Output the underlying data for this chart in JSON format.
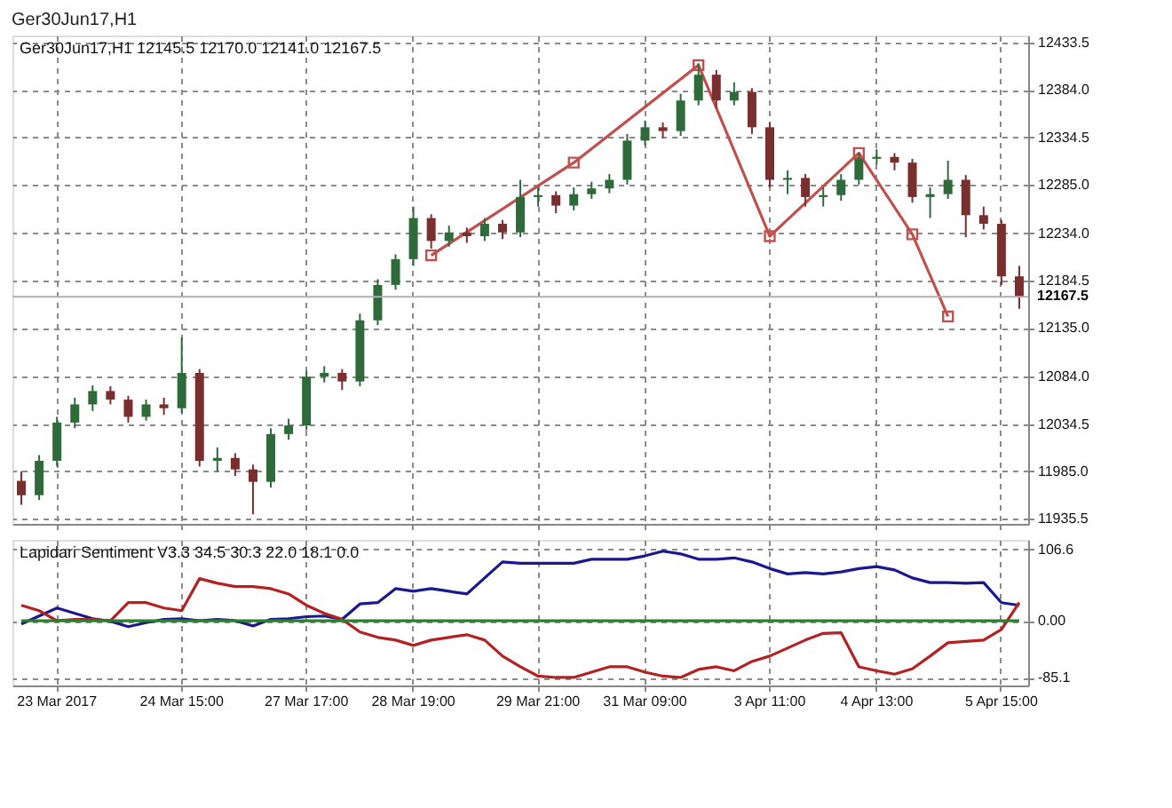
{
  "chart_data": [
    {
      "type": "candlestick",
      "title": "Ger30Jun17,H1",
      "annotations": [
        "Ger30Jun17,H1  12145.5 12170.0 12141.0 12167.5"
      ],
      "categories": [
        null,
        null,
        null,
        null,
        null,
        null,
        null,
        null,
        null,
        null,
        null,
        null,
        null,
        null,
        null,
        null,
        null,
        null,
        null,
        null,
        null,
        null,
        null,
        null,
        null,
        null,
        null,
        null,
        null,
        null,
        null,
        null,
        null,
        null,
        null,
        null,
        null,
        null,
        null,
        null,
        null,
        null,
        null,
        null,
        null,
        null,
        null,
        null,
        null,
        null,
        null,
        null,
        null,
        null,
        null,
        null,
        null
      ],
      "ohlc": [
        [
          11975,
          11985,
          11950,
          11960
        ],
        [
          11960,
          12002,
          11955,
          11996
        ],
        [
          11996,
          12042,
          11990,
          12036
        ],
        [
          12036,
          12062,
          12030,
          12055
        ],
        [
          12055,
          12075,
          12048,
          12069
        ],
        [
          12069,
          12074,
          12055,
          12060
        ],
        [
          12060,
          12064,
          12036,
          12042
        ],
        [
          12042,
          12060,
          12038,
          12055
        ],
        [
          12055,
          12062,
          12044,
          12051
        ],
        [
          12051,
          12125,
          12046,
          12088
        ],
        [
          12088,
          12092,
          11990,
          11996
        ],
        [
          11996,
          12010,
          11985,
          11999
        ],
        [
          11999,
          12004,
          11980,
          11987
        ],
        [
          11987,
          11992,
          11940,
          11974
        ],
        [
          11974,
          12030,
          11968,
          12024
        ],
        [
          12024,
          12040,
          12018,
          12033
        ],
        [
          12033,
          12090,
          12028,
          12084
        ],
        [
          12084,
          12095,
          12078,
          12088
        ],
        [
          12088,
          12092,
          12070,
          12079
        ],
        [
          12079,
          12150,
          12074,
          12143
        ],
        [
          12143,
          12186,
          12138,
          12180
        ],
        [
          12180,
          12212,
          12175,
          12207
        ],
        [
          12207,
          12262,
          12200,
          12250
        ],
        [
          12250,
          12254,
          12218,
          12226
        ],
        [
          12226,
          12242,
          12220,
          12235
        ],
        [
          12235,
          12240,
          12224,
          12231
        ],
        [
          12231,
          12250,
          12226,
          12244
        ],
        [
          12244,
          12248,
          12228,
          12235
        ],
        [
          12235,
          12290,
          12230,
          12272
        ],
        [
          12272,
          12282,
          12262,
          12274
        ],
        [
          12274,
          12278,
          12255,
          12263
        ],
        [
          12263,
          12282,
          12258,
          12275
        ],
        [
          12275,
          12288,
          12270,
          12281
        ],
        [
          12281,
          12296,
          12276,
          12290
        ],
        [
          12290,
          12338,
          12285,
          12331
        ],
        [
          12331,
          12352,
          12326,
          12345
        ],
        [
          12345,
          12350,
          12334,
          12341
        ],
        [
          12341,
          12380,
          12336,
          12373
        ],
        [
          12373,
          12412,
          12368,
          12400
        ],
        [
          12400,
          12405,
          12365,
          12373
        ],
        [
          12373,
          12392,
          12368,
          12382
        ],
        [
          12382,
          12386,
          12338,
          12345
        ],
        [
          12345,
          12350,
          12282,
          12290
        ],
        [
          12290,
          12300,
          12275,
          12292
        ],
        [
          12292,
          12296,
          12262,
          12272
        ],
        [
          12272,
          12282,
          12262,
          12274
        ],
        [
          12274,
          12296,
          12268,
          12290
        ],
        [
          12290,
          12318,
          12285,
          12312
        ],
        [
          12312,
          12322,
          12306,
          12314
        ],
        [
          12314,
          12318,
          12300,
          12308
        ],
        [
          12308,
          12312,
          12266,
          12272
        ],
        [
          12272,
          12282,
          12250,
          12275
        ],
        [
          12275,
          12310,
          12270,
          12290
        ],
        [
          12290,
          12295,
          12230,
          12253
        ],
        [
          12253,
          12262,
          12238,
          12244
        ],
        [
          12244,
          12248,
          12180,
          12189
        ],
        [
          12189,
          12200,
          12155,
          12167.5
        ]
      ],
      "colors": [
        "#7a2e2e",
        "#2f6b3a",
        "#2f6b3a",
        "#2f6b3a",
        "#2f6b3a",
        "#7a2e2e",
        "#7a2e2e",
        "#2f6b3a",
        "#7a2e2e",
        "#2f6b3a",
        "#7a2e2e",
        "#2f6b3a",
        "#7a2e2e",
        "#7a2e2e",
        "#2f6b3a",
        "#2f6b3a",
        "#2f6b3a",
        "#2f6b3a",
        "#7a2e2e",
        "#2f6b3a",
        "#2f6b3a",
        "#2f6b3a",
        "#2f6b3a",
        "#7a2e2e",
        "#2f6b3a",
        "#7a2e2e",
        "#2f6b3a",
        "#7a2e2e",
        "#2f6b3a",
        "#2f6b3a",
        "#7a2e2e",
        "#2f6b3a",
        "#2f6b3a",
        "#2f6b3a",
        "#2f6b3a",
        "#2f6b3a",
        "#7a2e2e",
        "#2f6b3a",
        "#2f6b3a",
        "#7a2e2e",
        "#2f6b3a",
        "#7a2e2e",
        "#7a2e2e",
        "#2f6b3a",
        "#7a2e2e",
        "#2f6b3a",
        "#2f6b3a",
        "#2f6b3a",
        "#2f6b3a",
        "#7a2e2e",
        "#7a2e2e",
        "#2f6b3a",
        "#2f6b3a",
        "#7a2e2e",
        "#7a2e2e",
        "#7a2e2e",
        "#7a2e2e"
      ],
      "series": [
        {
          "type": "line",
          "color": "#c0504d",
          "values": [
            null,
            null,
            null,
            null,
            null,
            null,
            null,
            null,
            null,
            null,
            null,
            null,
            null,
            null,
            null,
            null,
            null,
            null,
            null,
            null,
            null,
            null,
            null,
            12211,
            null,
            null,
            null,
            null,
            null,
            null,
            null,
            12308,
            null,
            null,
            null,
            null,
            null,
            null,
            12410,
            null,
            null,
            null,
            12231,
            null,
            null,
            null,
            null,
            12318,
            null,
            null,
            12233,
            null,
            12147,
            null,
            null,
            null,
            null
          ]
        }
      ],
      "marker": "square",
      "ylim": [
        11930,
        12441
      ],
      "yticks": [
        12433.5,
        {
          "value": 12384,
          "label": "12384.0"
        },
        12334.5,
        {
          "value": 12285,
          "label": "12285.0"
        },
        {
          "value": 12234,
          "label": "12234.0"
        },
        12184.5,
        {
          "value": 12135,
          "label": "12135.0"
        },
        {
          "value": 12084,
          "label": "12084.0"
        },
        12034.5,
        {
          "value": 11985,
          "label": "11985.0"
        },
        11935.5
      ],
      "ref_lines": [
        {
          "axis": "y",
          "value": 12167.5,
          "label": "12167.5",
          "color": "#b0b0b0"
        }
      ],
      "tick_labels": "y",
      "grid": true
    },
    {
      "type": "line",
      "annotations": [
        "Lapidari Sentiment V3.3 34.5 30.3 22.0 18.1 0.0"
      ],
      "categories": [
        null,
        null,
        "23 Mar 2017",
        null,
        null,
        null,
        null,
        null,
        null,
        "24 Mar 15:00",
        null,
        null,
        null,
        null,
        null,
        null,
        "27 Mar 17:00",
        null,
        null,
        null,
        null,
        null,
        "28 Mar 19:00",
        null,
        null,
        null,
        null,
        null,
        null,
        "29 Mar 21:00",
        null,
        null,
        null,
        null,
        null,
        "31 Mar 09:00",
        null,
        null,
        null,
        null,
        null,
        null,
        "3 Apr 11:00",
        null,
        null,
        null,
        null,
        null,
        "4 Apr 13:00",
        null,
        null,
        null,
        null,
        null,
        null,
        "5 Apr 15:00",
        null
      ],
      "series": [
        {
          "color": "#1a1a8c",
          "values": [
            -5,
            7,
            19,
            11,
            3,
            -1,
            -9,
            -3,
            2,
            3,
            0,
            2,
            0,
            -8,
            2,
            3,
            6,
            7,
            2,
            25,
            27,
            48,
            44,
            48,
            44,
            40,
            64,
            88,
            86,
            86,
            86,
            86,
            92,
            92,
            92,
            97,
            104,
            100,
            92,
            92,
            94,
            88,
            78,
            70,
            72,
            70,
            73,
            78,
            81,
            76,
            64,
            57,
            57,
            56,
            57,
            27,
            23
          ]
        },
        {
          "color": "#b22222",
          "values": [
            23,
            15,
            0,
            2,
            2,
            0,
            27,
            27,
            19,
            15,
            63,
            56,
            51,
            51,
            48,
            40,
            23,
            11,
            2,
            -17,
            -25,
            -29,
            -37,
            -29,
            -25,
            -21,
            -29,
            -53,
            -69,
            -83,
            -85,
            -85,
            -77,
            -69,
            -69,
            -77,
            -83,
            -85,
            -73,
            -69,
            -75,
            -61,
            -53,
            -41,
            -29,
            -19,
            -18,
            -69,
            -75,
            -80,
            -72,
            -53,
            -33,
            -31,
            -29,
            -13,
            27
          ]
        },
        {
          "color": "#2e7d32",
          "values": [
            0,
            0,
            0,
            0,
            0,
            0,
            0,
            0,
            0,
            0,
            0,
            0,
            0,
            0,
            0,
            0,
            0,
            0,
            0,
            0,
            0,
            0,
            0,
            0,
            0,
            0,
            0,
            0,
            0,
            0,
            0,
            0,
            0,
            0,
            0,
            0,
            0,
            0,
            0,
            0,
            0,
            0,
            0,
            0,
            0,
            0,
            0,
            0,
            0,
            0,
            0,
            0,
            0,
            0,
            0,
            0,
            0
          ]
        }
      ],
      "ylim": [
        -97,
        121
      ],
      "yticks": [
        106.6,
        {
          "value": 0,
          "label": "0.00"
        },
        -85.1
      ],
      "grid": true
    }
  ]
}
